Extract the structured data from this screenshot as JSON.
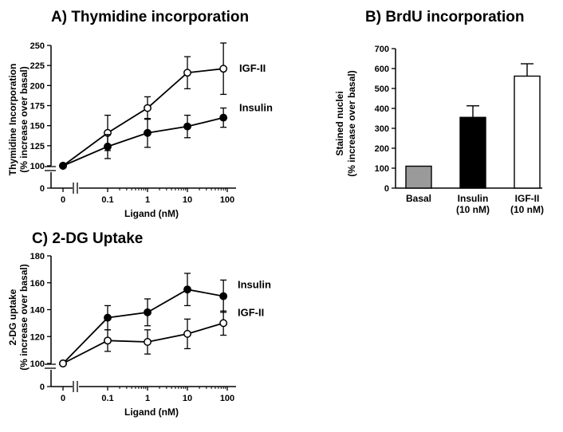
{
  "chart_data": [
    {
      "id": "A",
      "type": "line",
      "title": "A) Thymidine incorporation",
      "xlabel": "Ligand (nM)",
      "ylabel_lines": [
        "Thymidine Incorporation",
        "(% increase over basal)"
      ],
      "x_scale": "log",
      "x_tick_labels": [
        "0",
        "0.1",
        "1",
        "10",
        "100"
      ],
      "y_ticks": [
        100,
        125,
        150,
        175,
        200,
        225,
        250
      ],
      "ylim": [
        100,
        250
      ],
      "y_axis_break_label": "0",
      "x": [
        0,
        0.1,
        1,
        10,
        80
      ],
      "series": [
        {
          "name": "IGF-II",
          "marker": "open-circle",
          "values": [
            100,
            141,
            172,
            216,
            221
          ],
          "errors": [
            0,
            22,
            14,
            20,
            32
          ]
        },
        {
          "name": "Insulin",
          "marker": "filled-circle",
          "values": [
            100,
            124,
            141,
            149,
            160
          ],
          "errors": [
            0,
            15,
            18,
            14,
            12
          ]
        }
      ]
    },
    {
      "id": "B",
      "type": "bar",
      "title": "B) BrdU incorporation",
      "ylabel_lines": [
        "Stained nuclei",
        "(% increase over basal)"
      ],
      "y_ticks": [
        0,
        100,
        200,
        300,
        400,
        500,
        600,
        700
      ],
      "ylim": [
        0,
        700
      ],
      "bars": [
        {
          "label_lines": [
            "Basal"
          ],
          "value": 110,
          "error": 0,
          "color": "#9a9a9a"
        },
        {
          "label_lines": [
            "Insulin",
            "(10 nM)"
          ],
          "value": 355,
          "error": 58,
          "color": "#000000"
        },
        {
          "label_lines": [
            "IGF-II",
            "(10 nM)"
          ],
          "value": 562,
          "error": 62,
          "color": "#ffffff"
        }
      ]
    },
    {
      "id": "C",
      "type": "line",
      "title": "C) 2-DG Uptake",
      "xlabel": "Ligand (nM)",
      "ylabel_lines": [
        "2-DG uptake",
        "(% increase over basal)"
      ],
      "x_scale": "log",
      "x_tick_labels": [
        "0",
        "0.1",
        "1",
        "10",
        "100"
      ],
      "y_ticks": [
        100,
        120,
        140,
        160,
        180
      ],
      "ylim": [
        100,
        180
      ],
      "y_axis_break_label": "0",
      "x": [
        0,
        0.1,
        1,
        10,
        80
      ],
      "series": [
        {
          "name": "Insulin",
          "marker": "filled-circle",
          "values": [
            100,
            134,
            138,
            155,
            150
          ],
          "errors": [
            0,
            9,
            10,
            12,
            12
          ]
        },
        {
          "name": "IGF-II",
          "marker": "open-circle",
          "values": [
            100,
            117,
            116,
            122,
            130
          ],
          "errors": [
            0,
            8,
            9,
            11,
            9
          ]
        }
      ]
    }
  ]
}
